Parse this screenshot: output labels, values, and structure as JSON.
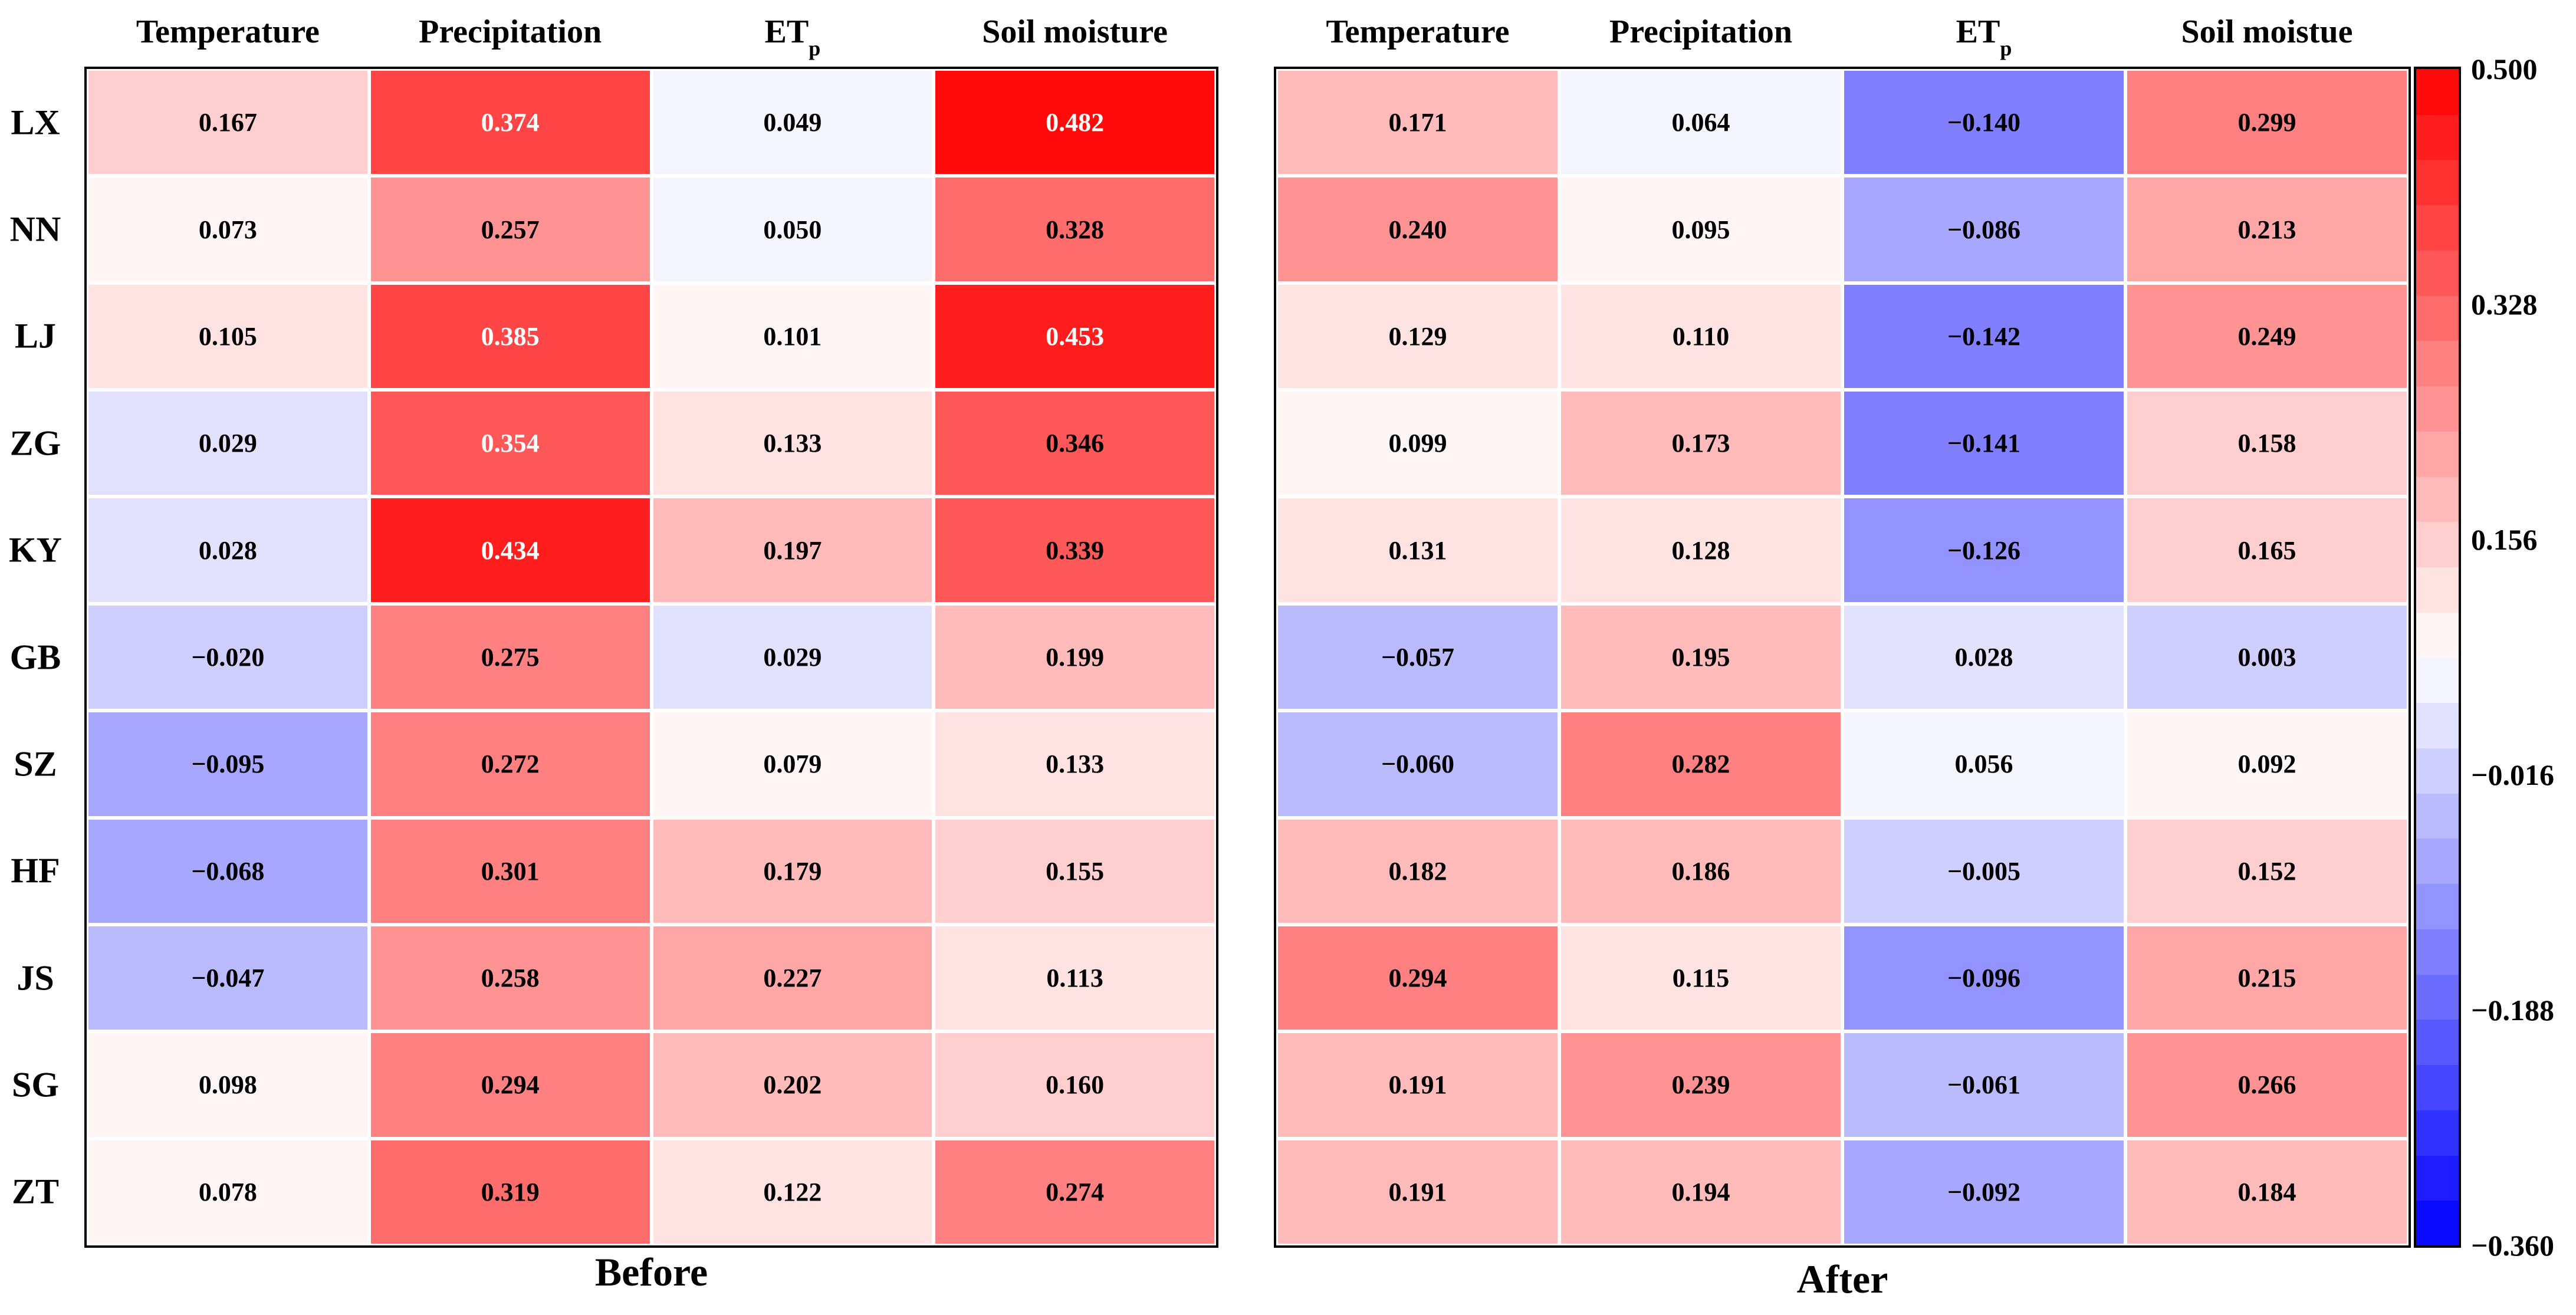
{
  "chart_data": [
    {
      "type": "heatmap",
      "title": "Before",
      "columns": [
        "Temperature",
        "Precipitation",
        "ET",
        "Soil moisture"
      ],
      "column_subscripts": [
        "",
        "",
        "p",
        ""
      ],
      "rows": [
        "LX",
        "NN",
        "LJ",
        "ZG",
        "KY",
        "GB",
        "SZ",
        "HF",
        "JS",
        "SG",
        "ZT"
      ],
      "values": [
        [
          0.167,
          0.374,
          0.049,
          0.482
        ],
        [
          0.073,
          0.257,
          0.05,
          0.328
        ],
        [
          0.105,
          0.385,
          0.101,
          0.453
        ],
        [
          0.029,
          0.354,
          0.133,
          0.346
        ],
        [
          0.028,
          0.434,
          0.197,
          0.339
        ],
        [
          -0.02,
          0.275,
          0.029,
          0.199
        ],
        [
          -0.095,
          0.272,
          0.079,
          0.133
        ],
        [
          -0.068,
          0.301,
          0.179,
          0.155
        ],
        [
          -0.047,
          0.258,
          0.227,
          0.113
        ],
        [
          0.098,
          0.294,
          0.202,
          0.16
        ],
        [
          0.078,
          0.319,
          0.122,
          0.274
        ]
      ],
      "labels": [
        [
          "0.167",
          "0.374",
          "0.049",
          "0.482"
        ],
        [
          "0.073",
          "0.257",
          "0.050",
          "0.328"
        ],
        [
          "0.105",
          "0.385",
          "0.101",
          "0.453"
        ],
        [
          "0.029",
          "0.354",
          "0.133",
          "0.346"
        ],
        [
          "0.028",
          "0.434",
          "0.197",
          "0.339"
        ],
        [
          "−0.020",
          "0.275",
          "0.029",
          "0.199"
        ],
        [
          "−0.095",
          "0.272",
          "0.079",
          "0.133"
        ],
        [
          "−0.068",
          "0.301",
          "0.179",
          "0.155"
        ],
        [
          "−0.047",
          "0.258",
          "0.227",
          "0.113"
        ],
        [
          "0.098",
          "0.294",
          "0.202",
          "0.160"
        ],
        [
          "0.078",
          "0.319",
          "0.122",
          "0.274"
        ]
      ]
    },
    {
      "type": "heatmap",
      "title": "After",
      "columns": [
        "Temperature",
        "Precipitation",
        "ET",
        "Soil moistue"
      ],
      "column_subscripts": [
        "",
        "",
        "p",
        ""
      ],
      "rows": [
        "LX",
        "NN",
        "LJ",
        "ZG",
        "KY",
        "GB",
        "SZ",
        "HF",
        "JS",
        "SG",
        "ZT"
      ],
      "values": [
        [
          0.171,
          0.064,
          -0.14,
          0.299
        ],
        [
          0.24,
          0.095,
          -0.086,
          0.213
        ],
        [
          0.129,
          0.11,
          -0.142,
          0.249
        ],
        [
          0.099,
          0.173,
          -0.141,
          0.158
        ],
        [
          0.131,
          0.128,
          -0.126,
          0.165
        ],
        [
          -0.057,
          0.195,
          0.028,
          0.003
        ],
        [
          -0.06,
          0.282,
          0.056,
          0.092
        ],
        [
          0.182,
          0.186,
          -0.005,
          0.152
        ],
        [
          0.294,
          0.115,
          -0.096,
          0.215
        ],
        [
          0.191,
          0.239,
          -0.061,
          0.266
        ],
        [
          0.191,
          0.194,
          -0.092,
          0.184
        ]
      ],
      "labels": [
        [
          "0.171",
          "0.064",
          "−0.140",
          "0.299"
        ],
        [
          "0.240",
          "0.095",
          "−0.086",
          "0.213"
        ],
        [
          "0.129",
          "0.110",
          "−0.142",
          "0.249"
        ],
        [
          "0.099",
          "0.173",
          "−0.141",
          "0.158"
        ],
        [
          "0.131",
          "0.128",
          "−0.126",
          "0.165"
        ],
        [
          "−0.057",
          "0.195",
          "0.028",
          "0.003"
        ],
        [
          "−0.060",
          "0.282",
          "0.056",
          "0.092"
        ],
        [
          "0.182",
          "0.186",
          "−0.005",
          "0.152"
        ],
        [
          "0.294",
          "0.115",
          "−0.096",
          "0.215"
        ],
        [
          "0.191",
          "0.239",
          "−0.061",
          "0.266"
        ],
        [
          "0.191",
          "0.194",
          "−0.092",
          "0.184"
        ]
      ]
    }
  ],
  "colorbar": {
    "vmin": -0.36,
    "vmax": 0.5,
    "white_point": 0.07,
    "levels": 26,
    "ticks": [
      0.5,
      0.328,
      0.156,
      -0.016,
      -0.188,
      -0.36
    ],
    "tick_labels": [
      "0.500",
      "0.328",
      "0.156",
      "−0.016",
      "−0.188",
      "−0.360"
    ],
    "low_color": "#0000ff",
    "high_color": "#ff0000",
    "mid_color": "#ffffff"
  }
}
